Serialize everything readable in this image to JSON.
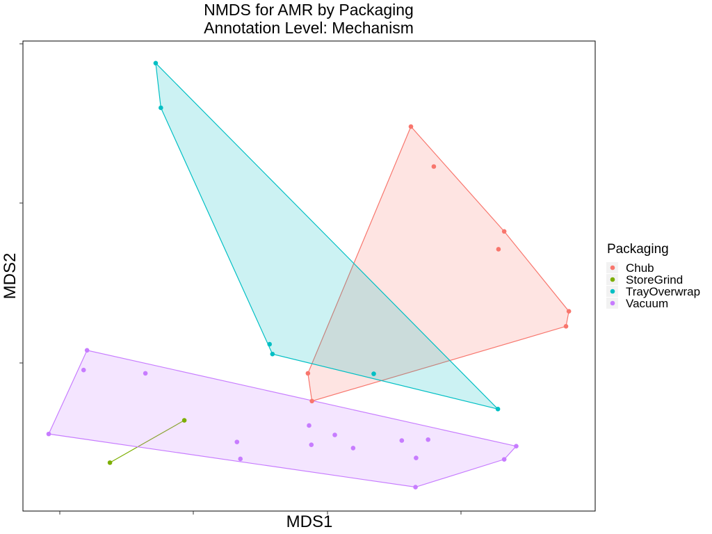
{
  "chart_data": {
    "type": "scatter",
    "title": "NMDS for AMR by Packaging",
    "subtitle": "Annotation Level: Mechanism",
    "xlabel": "MDS1",
    "ylabel": "MDS2",
    "xlim": [
      0,
      1000
    ],
    "ylim": [
      0,
      1000
    ],
    "grid": false,
    "hulls": true,
    "legend": {
      "title": "Packaging",
      "position": "right"
    },
    "series": [
      {
        "name": "Chub",
        "color": "#F8766D",
        "points": [
          [
            678,
            818
          ],
          [
            718,
            733
          ],
          [
            831,
            557
          ],
          [
            841,
            595
          ],
          [
            954,
            425
          ],
          [
            949,
            393
          ],
          [
            498,
            293
          ],
          [
            505,
            234
          ]
        ]
      },
      {
        "name": "StoreGrind",
        "color": "#7CAE00",
        "points": [
          [
            152,
            103
          ],
          [
            282,
            193
          ]
        ]
      },
      {
        "name": "TrayOverwrap",
        "color": "#00BFC4",
        "points": [
          [
            232,
            953
          ],
          [
            241,
            858
          ],
          [
            431,
            355
          ],
          [
            436,
            334
          ],
          [
            613,
            292
          ],
          [
            830,
            217
          ]
        ]
      },
      {
        "name": "Vacuum",
        "color": "#C77CFF",
        "points": [
          [
            112,
            342
          ],
          [
            106,
            300
          ],
          [
            214,
            293
          ],
          [
            45,
            164
          ],
          [
            374,
            147
          ],
          [
            380,
            111
          ],
          [
            500,
            182
          ],
          [
            504,
            141
          ],
          [
            545,
            162
          ],
          [
            577,
            134
          ],
          [
            662,
            150
          ],
          [
            708,
            152
          ],
          [
            687,
            113
          ],
          [
            686,
            51
          ],
          [
            862,
            138
          ],
          [
            841,
            110
          ]
        ]
      }
    ]
  }
}
